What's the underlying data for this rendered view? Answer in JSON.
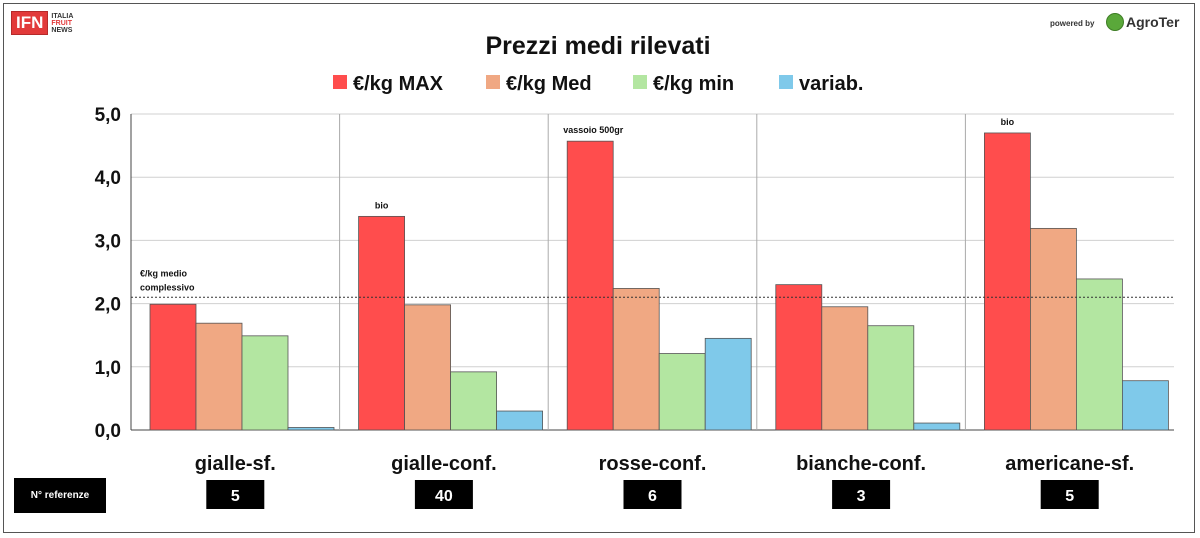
{
  "header": {
    "logo_text": "IFN",
    "logo_sub": [
      "ITALIA",
      "FRUIT",
      "NEWS"
    ],
    "powered_label": "powered by",
    "agro_name": "AgroTer"
  },
  "ref_label": "N° referenze",
  "chart_data": {
    "type": "bar",
    "title": "Prezzi medi rilevati",
    "categories": [
      "gialle-sf.",
      "gialle-conf.",
      "rosse-conf.",
      "bianche-conf.",
      "americane-sf."
    ],
    "series": [
      {
        "name": "€/kg MAX",
        "color": "#ff4d4d",
        "values": [
          1.99,
          3.38,
          4.57,
          2.3,
          4.7
        ]
      },
      {
        "name": "€/kg Med",
        "color": "#f0a883",
        "values": [
          1.69,
          1.98,
          2.24,
          1.95,
          3.19
        ]
      },
      {
        "name": "€/kg  min",
        "color": "#b3e6a1",
        "values": [
          1.49,
          0.92,
          1.21,
          1.65,
          2.39
        ]
      },
      {
        "name": "variab.",
        "color": "#7fc9ea",
        "values": [
          0.04,
          0.3,
          1.45,
          0.11,
          0.78
        ]
      }
    ],
    "ylim": [
      0,
      5
    ],
    "yticks": [
      "0,0",
      "1,0",
      "2,0",
      "3,0",
      "4,0",
      "5,0"
    ],
    "reference_line": {
      "value": 2.1,
      "label": [
        "€/kg medio",
        "complessivo"
      ]
    },
    "annotations": [
      {
        "category": 1,
        "text": "bio"
      },
      {
        "category": 2,
        "text": "vassoio 500gr"
      },
      {
        "category": 4,
        "text": "bio"
      }
    ],
    "referenze": [
      "5",
      "40",
      "6",
      "3",
      "5"
    ],
    "grid": true,
    "legend_position": "top"
  }
}
